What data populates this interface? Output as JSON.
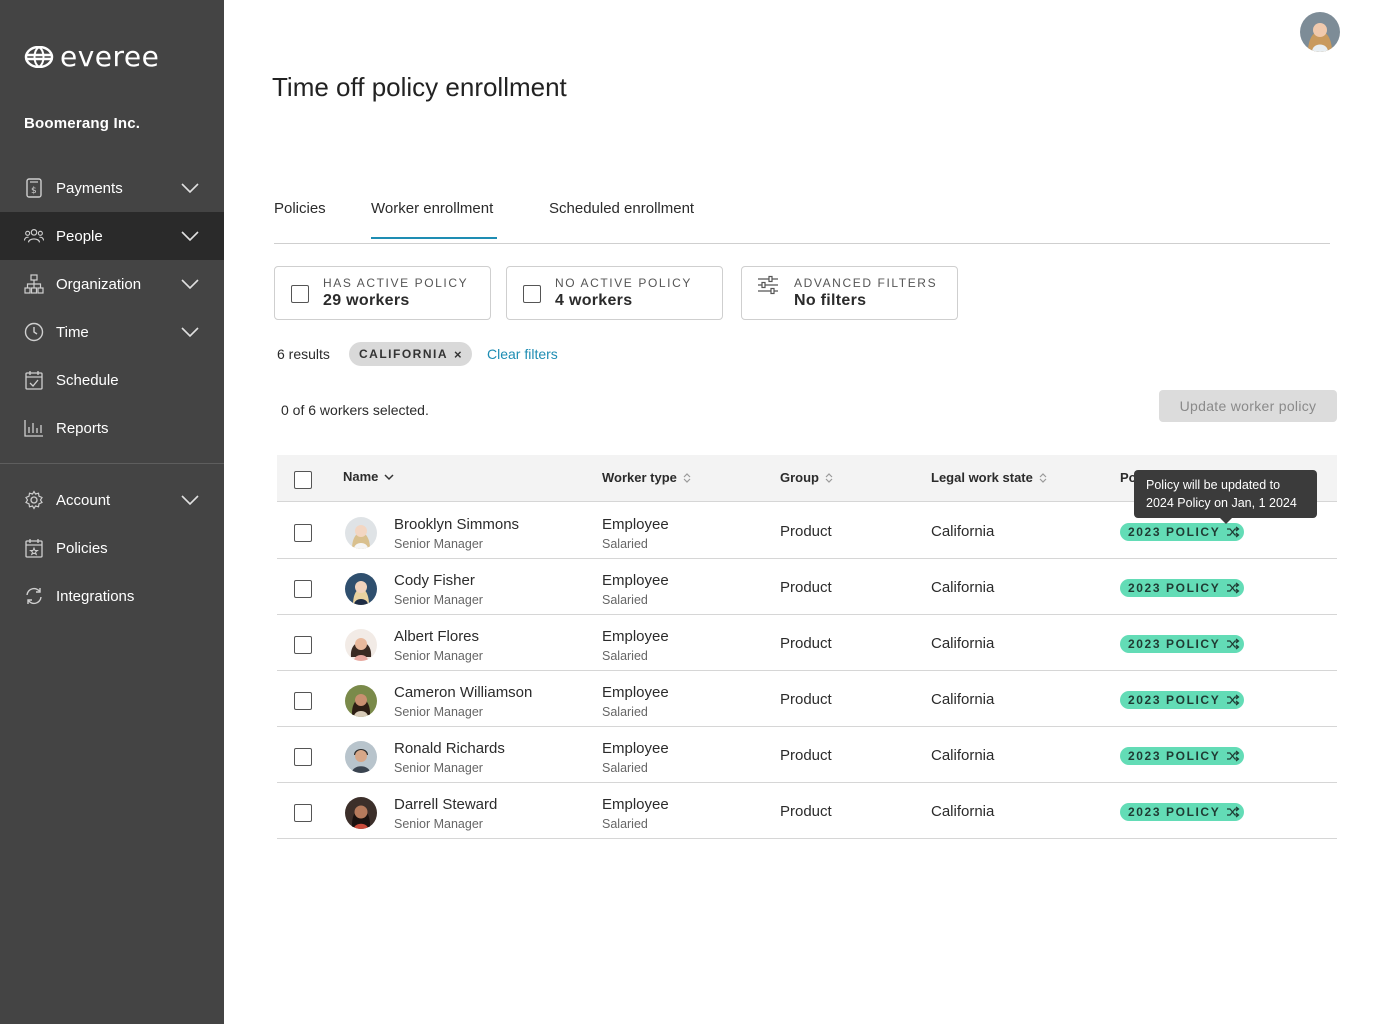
{
  "app": {
    "logo_text": "everee",
    "company": "Boomerang Inc."
  },
  "sidebar": {
    "items": [
      {
        "label": "Payments",
        "icon": "payments-icon",
        "has_chevron": true,
        "active": false
      },
      {
        "label": "People",
        "icon": "people-icon",
        "has_chevron": true,
        "active": true
      },
      {
        "label": "Organization",
        "icon": "organization-icon",
        "has_chevron": true,
        "active": false
      },
      {
        "label": "Time",
        "icon": "clock-icon",
        "has_chevron": true,
        "active": false
      },
      {
        "label": "Schedule",
        "icon": "calendar-icon",
        "has_chevron": false,
        "active": false
      },
      {
        "label": "Reports",
        "icon": "bar-chart-icon",
        "has_chevron": false,
        "active": false
      },
      {
        "label": "Account",
        "icon": "gear-icon",
        "has_chevron": true,
        "active": false
      },
      {
        "label": "Policies",
        "icon": "policy-calendar-icon",
        "has_chevron": false,
        "active": false
      },
      {
        "label": "Integrations",
        "icon": "sync-icon",
        "has_chevron": false,
        "active": false
      }
    ]
  },
  "page": {
    "title": "Time off policy enrollment"
  },
  "tabs": [
    {
      "label": "Policies",
      "active": false
    },
    {
      "label": "Worker enrollment",
      "active": true
    },
    {
      "label": "Scheduled enrollment",
      "active": false
    }
  ],
  "filters": {
    "has_active": {
      "label": "HAS ACTIVE POLICY",
      "value": "29 workers"
    },
    "no_active": {
      "label": "NO ACTIVE POLICY",
      "value": "4 workers"
    },
    "advanced": {
      "label": "ADVANCED FILTERS",
      "value": "No filters"
    }
  },
  "results": {
    "count_text": "6 results",
    "chip_label": "CALIFORNIA",
    "chip_close": "×",
    "clear_label": "Clear filters"
  },
  "selection": {
    "text": "0 of 6 workers selected.",
    "update_button": "Update worker policy"
  },
  "table": {
    "headers": {
      "name": "Name",
      "worker_type": "Worker type",
      "group": "Group",
      "legal_state": "Legal work state",
      "policy": "Po"
    },
    "rows": [
      {
        "name": "Brooklyn Simmons",
        "role": "Senior Manager",
        "type": "Employee",
        "type_sub": "Salaried",
        "group": "Product",
        "state": "California",
        "policy": "2023 POLICY"
      },
      {
        "name": "Cody Fisher",
        "role": "Senior Manager",
        "type": "Employee",
        "type_sub": "Salaried",
        "group": "Product",
        "state": "California",
        "policy": "2023 POLICY"
      },
      {
        "name": "Albert Flores",
        "role": "Senior Manager",
        "type": "Employee",
        "type_sub": "Salaried",
        "group": "Product",
        "state": "California",
        "policy": "2023 POLICY"
      },
      {
        "name": "Cameron Williamson",
        "role": "Senior Manager",
        "type": "Employee",
        "type_sub": "Salaried",
        "group": "Product",
        "state": "California",
        "policy": "2023 POLICY"
      },
      {
        "name": "Ronald Richards",
        "role": "Senior Manager",
        "type": "Employee",
        "type_sub": "Salaried",
        "group": "Product",
        "state": "California",
        "policy": "2023 POLICY"
      },
      {
        "name": "Darrell Steward",
        "role": "Senior Manager",
        "type": "Employee",
        "type_sub": "Salaried",
        "group": "Product",
        "state": "California",
        "policy": "2023 POLICY"
      }
    ]
  },
  "tooltip": {
    "line1": "Policy will be updated to",
    "line2": "2024 Policy on Jan, 1 2024"
  },
  "colors": {
    "sidebar_bg": "#444444",
    "sidebar_active": "#2a2a2a",
    "accent": "#1e8db3",
    "policy_badge": "#63dcb6"
  }
}
